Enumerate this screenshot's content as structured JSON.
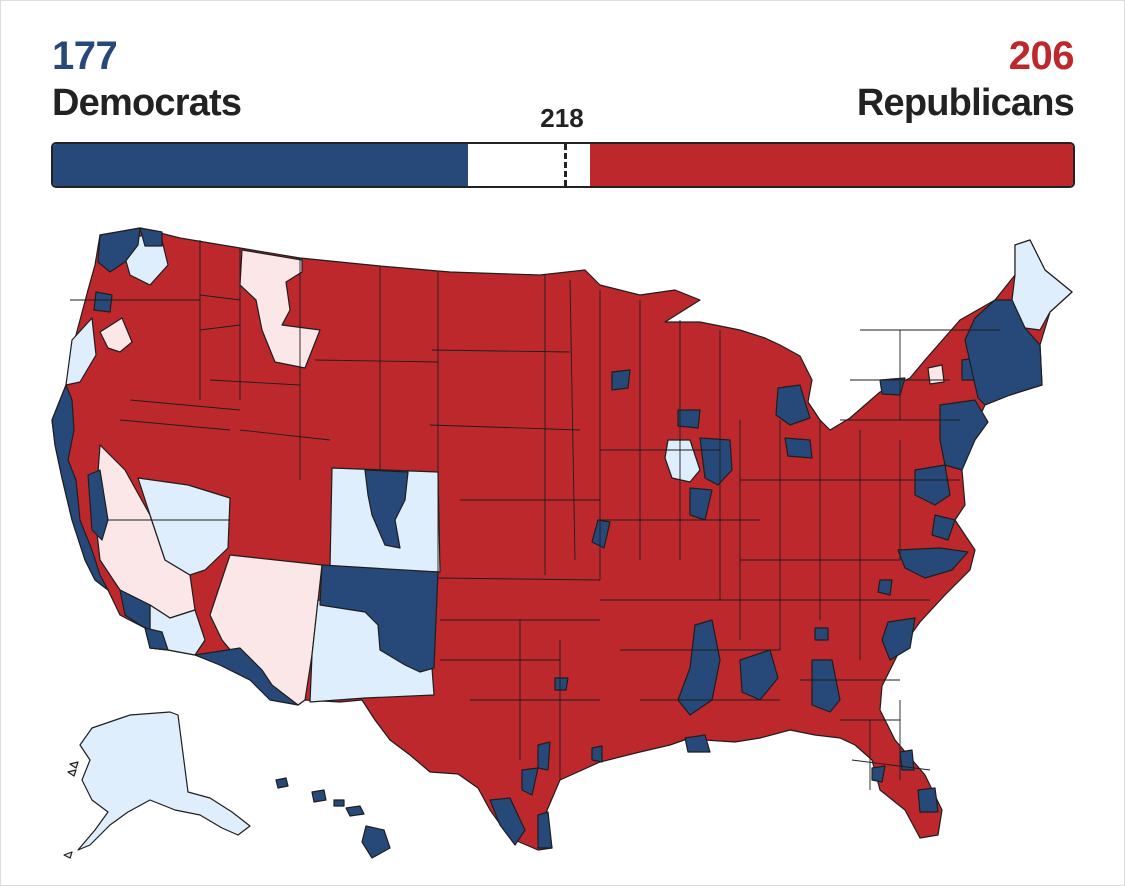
{
  "democrats": {
    "count": "177",
    "label": "Democrats"
  },
  "republicans": {
    "count": "206",
    "label": "Republicans"
  },
  "majority_threshold": "218",
  "seats": {
    "total": 435,
    "democrats": 177,
    "republicans": 206,
    "needed_for_majority": 218
  },
  "colors": {
    "democrat": "#27497a",
    "republican": "#bd282d",
    "lean_democrat": "#dfeefc",
    "lean_republican": "#fbe7e8",
    "border": "#1e1e1e"
  }
}
